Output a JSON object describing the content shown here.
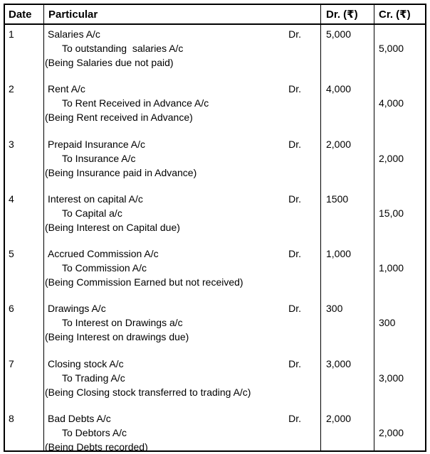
{
  "header": {
    "date": "Date",
    "particular": "Particular",
    "dr": "Dr. (₹)",
    "cr": "Cr. (₹)"
  },
  "entries": [
    {
      "date": "1",
      "account": "Salaries A/c",
      "dr_label": "Dr.",
      "to_line": "To outstanding  salaries A/c",
      "narration": "(Being Salaries due not paid)",
      "dr_amount": "5,000",
      "cr_amount": "5,000"
    },
    {
      "date": "2",
      "account": "Rent A/c",
      "dr_label": "Dr.",
      "to_line": "To Rent Received in Advance A/c",
      "narration": "(Being Rent received in Advance)",
      "dr_amount": "4,000",
      "cr_amount": "4,000"
    },
    {
      "date": "3",
      "account": "Prepaid Insurance A/c",
      "dr_label": "Dr.",
      "to_line": "To Insurance A/c",
      "narration": "(Being Insurance paid in Advance)",
      "dr_amount": "2,000",
      "cr_amount": "2,000"
    },
    {
      "date": "4",
      "account": "Interest on capital A/c",
      "dr_label": "Dr.",
      "to_line": "To Capital a/c",
      "narration": "(Being Interest on Capital due)",
      "dr_amount": "1500",
      "cr_amount": "15,00"
    },
    {
      "date": "5",
      "account": "Accrued Commission A/c",
      "dr_label": "Dr.",
      "to_line": "To Commission A/c",
      "narration": "(Being Commission Earned but not received)",
      "dr_amount": "1,000",
      "cr_amount": "1,000"
    },
    {
      "date": "6",
      "account": "Drawings A/c",
      "dr_label": "Dr.",
      "to_line": "To Interest on Drawings a/c",
      "narration": "(Being Interest on drawings due)",
      "dr_amount": "300",
      "cr_amount": "300"
    },
    {
      "date": "7",
      "account": "Closing stock A/c",
      "dr_label": "Dr.",
      "to_line": "To Trading A/c",
      "narration": "(Being Closing stock transferred to trading A/c)",
      "dr_amount": "3,000",
      "cr_amount": "3,000"
    },
    {
      "date": "8",
      "account": "Bad Debts A/c",
      "dr_label": "Dr.",
      "to_line": "To Debtors A/c",
      "narration": "(Being Debts recorded)",
      "dr_amount": "2,000",
      "cr_amount": "2,000"
    }
  ]
}
